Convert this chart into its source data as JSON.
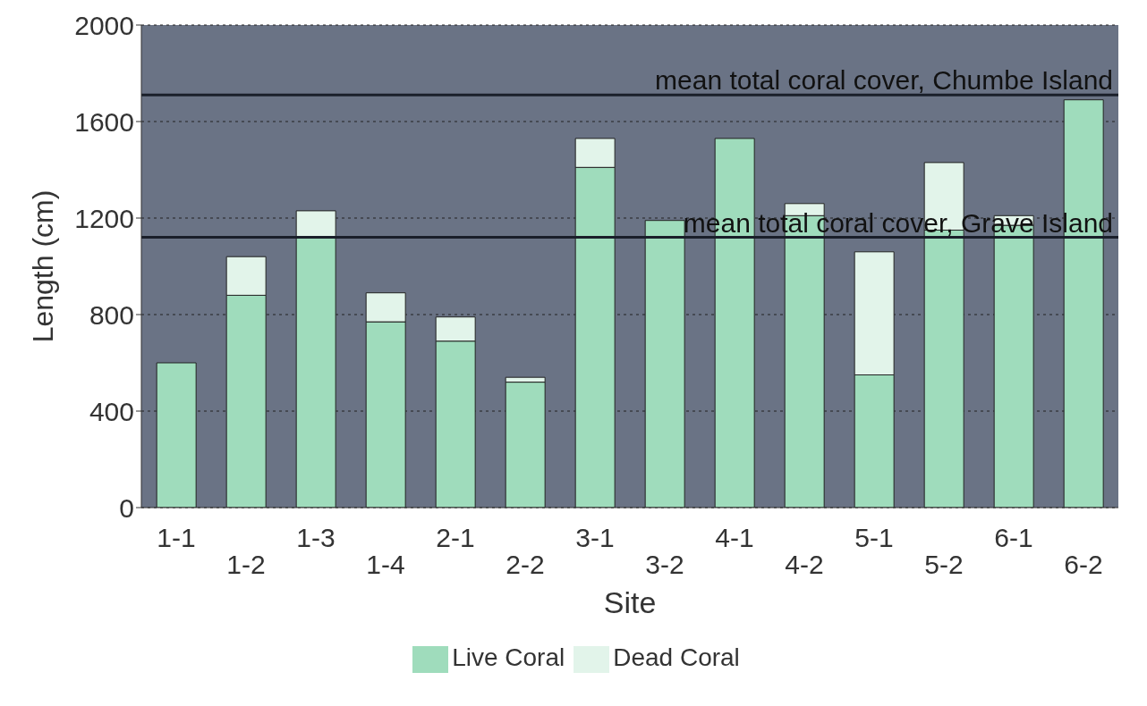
{
  "chart_data": {
    "type": "bar",
    "stacked": true,
    "xlabel": "Site",
    "ylabel": "Length (cm)",
    "categories": [
      "1-1",
      "1-2",
      "1-3",
      "1-4",
      "2-1",
      "2-2",
      "3-1",
      "3-2",
      "4-1",
      "4-2",
      "5-1",
      "5-2",
      "6-1",
      "6-2"
    ],
    "series": [
      {
        "name": "Live Coral",
        "color": "#9fdcbc",
        "values": [
          600,
          880,
          1120,
          770,
          690,
          520,
          1410,
          1190,
          1530,
          1210,
          550,
          1150,
          1170,
          1690
        ]
      },
      {
        "name": "Dead Coral",
        "color": "#e2f4ea",
        "values": [
          0,
          160,
          110,
          120,
          100,
          20,
          120,
          0,
          0,
          50,
          510,
          280,
          40,
          0
        ]
      }
    ],
    "ylim": [
      0,
      2000
    ],
    "yticks": [
      0,
      400,
      800,
      1200,
      1600,
      2000
    ],
    "grid": "y",
    "legend": "bottom",
    "ref_lines": [
      {
        "axis": "y",
        "value": 1710,
        "label": "mean total coral cover, Chumbe Island",
        "color": "#1a1f2a"
      },
      {
        "axis": "y",
        "value": 1120,
        "label": "mean total coral cover, Grave Island",
        "color": "#1a1f2a"
      }
    ]
  }
}
